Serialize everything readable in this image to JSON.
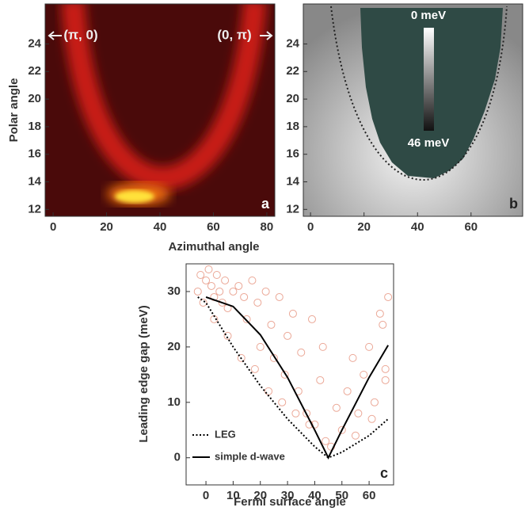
{
  "chart_data": [
    {
      "type": "heatmap",
      "panel_label": "a",
      "ylabel": "Polar angle",
      "xlabel": "Azimuthal angle",
      "xlim": [
        -3,
        83
      ],
      "ylim": [
        11.5,
        26.9
      ],
      "xticks": [
        0,
        20,
        40,
        60,
        80
      ],
      "yticks": [
        12,
        14,
        16,
        18,
        20,
        22,
        24
      ],
      "annotations": [
        "(π, 0)",
        "(0, π)"
      ]
    },
    {
      "type": "heatmap",
      "panel_label": "b",
      "xlim": [
        -2.7,
        79.3
      ],
      "ylim": [
        11.5,
        26.9
      ],
      "xticks": [
        0,
        20,
        40,
        60
      ],
      "yticks": [
        12,
        14,
        16,
        18,
        20,
        22,
        24
      ],
      "colorbar_labels": [
        "0 meV",
        "46 meV"
      ]
    },
    {
      "type": "scatter",
      "panel_label": "c",
      "xlabel": "Fermi surface angle",
      "ylabel": "Leading edge gap (meV)",
      "xlim": [
        -7.3,
        69
      ],
      "ylim": [
        -4.9,
        35
      ],
      "xticks": [
        0,
        10,
        20,
        30,
        40,
        50,
        60
      ],
      "yticks": [
        0,
        10,
        20,
        30
      ],
      "legend": "lower left",
      "series": [
        {
          "type": "scatter",
          "color": "#e07a60",
          "x": [
            -3,
            -2,
            -1,
            0,
            1,
            2,
            3,
            4,
            5,
            6,
            7,
            8,
            10,
            12,
            14,
            15,
            17,
            19,
            20,
            22,
            24,
            25,
            27,
            29,
            30,
            32,
            34,
            35,
            37,
            39,
            40,
            42,
            44,
            46,
            48,
            50,
            52,
            54,
            56,
            58,
            60,
            62,
            64,
            65,
            66,
            67,
            3,
            8,
            13,
            18,
            23,
            28,
            33,
            38,
            43,
            55,
            61,
            66
          ],
          "values": [
            30,
            33,
            28,
            32,
            34,
            31,
            29,
            33,
            30,
            28,
            32,
            27,
            30,
            31,
            29,
            25,
            32,
            28,
            20,
            30,
            24,
            18,
            29,
            15,
            22,
            26,
            12,
            19,
            8,
            25,
            6,
            14,
            3,
            2,
            9,
            5,
            12,
            18,
            8,
            15,
            20,
            10,
            26,
            24,
            14,
            29,
            25,
            22,
            18,
            16,
            12,
            10,
            8,
            6,
            20,
            4,
            7,
            16
          ]
        },
        {
          "type": "line",
          "name": "LEG",
          "color": "#000000",
          "dash": "dotted",
          "x": [
            -3,
            0,
            10,
            20,
            30,
            40,
            45,
            50,
            60,
            67
          ],
          "values": [
            29,
            28,
            20,
            13,
            7,
            2,
            0,
            1,
            4,
            7
          ]
        },
        {
          "type": "line",
          "name": "simple d-wave",
          "color": "#000000",
          "dash": "solid",
          "x": [
            0,
            10,
            20,
            30,
            40,
            45,
            50,
            60,
            67
          ],
          "values": [
            29,
            27.3,
            22.2,
            14.5,
            5,
            0,
            5,
            14.5,
            20.3
          ]
        }
      ]
    }
  ]
}
